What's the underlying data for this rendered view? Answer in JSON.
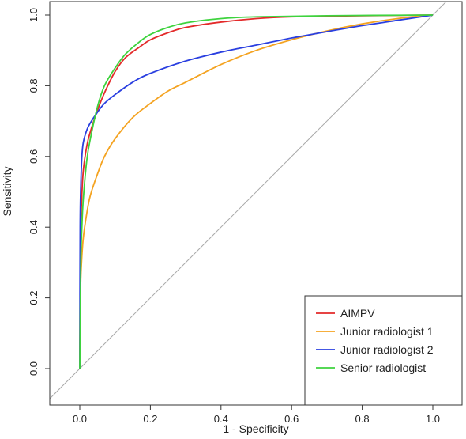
{
  "chart_data": {
    "type": "line",
    "title": "",
    "xlabel": "1 - Specificity",
    "ylabel": "Sensitivity",
    "xlim": [
      -0.05,
      1.08
    ],
    "ylim": [
      -0.05,
      1.05
    ],
    "xticks": [
      "0.0",
      "0.2",
      "0.4",
      "0.6",
      "0.8",
      "1.0"
    ],
    "yticks": [
      "0.0",
      "0.2",
      "0.4",
      "0.6",
      "0.8",
      "1.0"
    ],
    "legend_position": "bottom-right",
    "grid": false,
    "reference_line": {
      "from": [
        0,
        0
      ],
      "to": [
        1,
        1
      ],
      "color": "#aaaaaa"
    },
    "series": [
      {
        "name": "AIMPV",
        "color": "#e32a2a",
        "points": [
          [
            0,
            0
          ],
          [
            0.002,
            0.35
          ],
          [
            0.005,
            0.47
          ],
          [
            0.01,
            0.56
          ],
          [
            0.02,
            0.63
          ],
          [
            0.03,
            0.67
          ],
          [
            0.05,
            0.73
          ],
          [
            0.07,
            0.78
          ],
          [
            0.1,
            0.84
          ],
          [
            0.13,
            0.88
          ],
          [
            0.17,
            0.91
          ],
          [
            0.2,
            0.93
          ],
          [
            0.25,
            0.95
          ],
          [
            0.3,
            0.965
          ],
          [
            0.4,
            0.98
          ],
          [
            0.5,
            0.99
          ],
          [
            0.6,
            0.995
          ],
          [
            0.8,
            0.998
          ],
          [
            1,
            1
          ]
        ]
      },
      {
        "name": "Junior radiologist 1",
        "color": "#f4a321",
        "points": [
          [
            0,
            0
          ],
          [
            0.002,
            0.22
          ],
          [
            0.005,
            0.3
          ],
          [
            0.01,
            0.37
          ],
          [
            0.02,
            0.44
          ],
          [
            0.03,
            0.49
          ],
          [
            0.05,
            0.55
          ],
          [
            0.07,
            0.6
          ],
          [
            0.1,
            0.65
          ],
          [
            0.15,
            0.71
          ],
          [
            0.2,
            0.75
          ],
          [
            0.25,
            0.785
          ],
          [
            0.3,
            0.81
          ],
          [
            0.4,
            0.86
          ],
          [
            0.5,
            0.9
          ],
          [
            0.6,
            0.93
          ],
          [
            0.7,
            0.955
          ],
          [
            0.8,
            0.975
          ],
          [
            0.9,
            0.99
          ],
          [
            1,
            1
          ]
        ]
      },
      {
        "name": "Junior radiologist 2",
        "color": "#2a3fe0",
        "points": [
          [
            0,
            0
          ],
          [
            0.001,
            0.4
          ],
          [
            0.003,
            0.52
          ],
          [
            0.006,
            0.6
          ],
          [
            0.01,
            0.64
          ],
          [
            0.02,
            0.675
          ],
          [
            0.03,
            0.695
          ],
          [
            0.05,
            0.725
          ],
          [
            0.07,
            0.75
          ],
          [
            0.1,
            0.775
          ],
          [
            0.15,
            0.81
          ],
          [
            0.2,
            0.835
          ],
          [
            0.3,
            0.87
          ],
          [
            0.4,
            0.895
          ],
          [
            0.5,
            0.915
          ],
          [
            0.6,
            0.935
          ],
          [
            0.7,
            0.953
          ],
          [
            0.8,
            0.97
          ],
          [
            0.9,
            0.985
          ],
          [
            1,
            1
          ]
        ]
      },
      {
        "name": "Senior radiologist",
        "color": "#3ed33e",
        "points": [
          [
            0,
            0
          ],
          [
            0.003,
            0.3
          ],
          [
            0.006,
            0.4
          ],
          [
            0.01,
            0.48
          ],
          [
            0.02,
            0.59
          ],
          [
            0.03,
            0.65
          ],
          [
            0.05,
            0.74
          ],
          [
            0.07,
            0.8
          ],
          [
            0.1,
            0.85
          ],
          [
            0.13,
            0.89
          ],
          [
            0.17,
            0.925
          ],
          [
            0.2,
            0.945
          ],
          [
            0.25,
            0.965
          ],
          [
            0.3,
            0.978
          ],
          [
            0.4,
            0.99
          ],
          [
            0.5,
            0.995
          ],
          [
            0.7,
            0.998
          ],
          [
            1,
            1
          ]
        ]
      }
    ]
  }
}
